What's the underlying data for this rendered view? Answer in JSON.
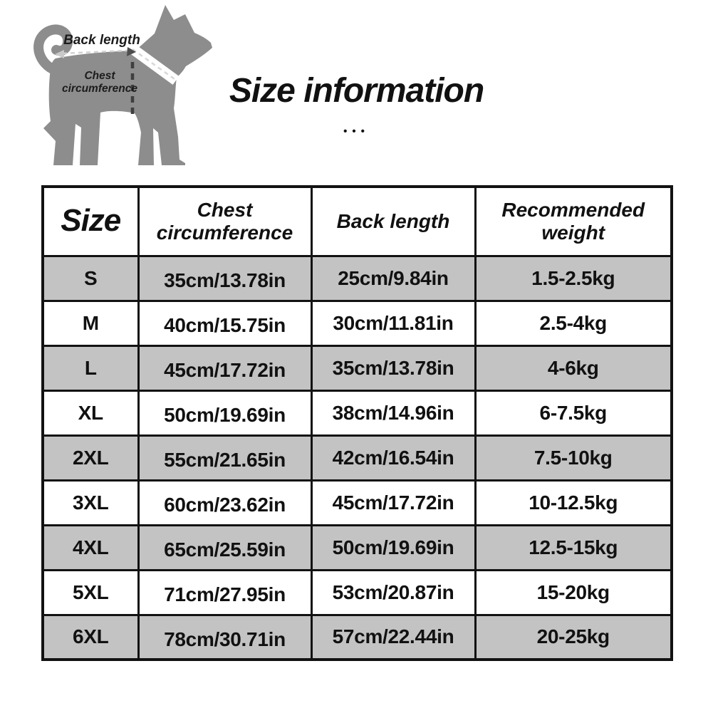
{
  "diagram": {
    "back_length_label": "Back length",
    "chest_label_line1": "Chest",
    "chest_label_line2": "circumference"
  },
  "title": "Size information",
  "title_dots": "•••",
  "table": {
    "columns": [
      "Size",
      "Chest circumference",
      "Back length",
      "Recommended weight"
    ],
    "rows": [
      {
        "size": "S",
        "chest": "35cm/13.78in",
        "back": "25cm/9.84in",
        "weight": "1.5-2.5kg"
      },
      {
        "size": "M",
        "chest": "40cm/15.75in",
        "back": "30cm/11.81in",
        "weight": "2.5-4kg"
      },
      {
        "size": "L",
        "chest": "45cm/17.72in",
        "back": "35cm/13.78in",
        "weight": "4-6kg"
      },
      {
        "size": "XL",
        "chest": "50cm/19.69in",
        "back": "38cm/14.96in",
        "weight": "6-7.5kg"
      },
      {
        "size": "2XL",
        "chest": "55cm/21.65in",
        "back": "42cm/16.54in",
        "weight": "7.5-10kg"
      },
      {
        "size": "3XL",
        "chest": "60cm/23.62in",
        "back": "45cm/17.72in",
        "weight": "10-12.5kg"
      },
      {
        "size": "4XL",
        "chest": "65cm/25.59in",
        "back": "50cm/19.69in",
        "weight": "12.5-15kg"
      },
      {
        "size": "5XL",
        "chest": "71cm/27.95in",
        "back": "53cm/20.87in",
        "weight": "15-20kg"
      },
      {
        "size": "6XL",
        "chest": "78cm/30.71in",
        "back": "57cm/22.44in",
        "weight": "20-25kg"
      }
    ]
  },
  "colors": {
    "dog_silhouette": "#8d8d8d",
    "shaded_row": "#c3c3c3",
    "table_border": "#121212"
  }
}
